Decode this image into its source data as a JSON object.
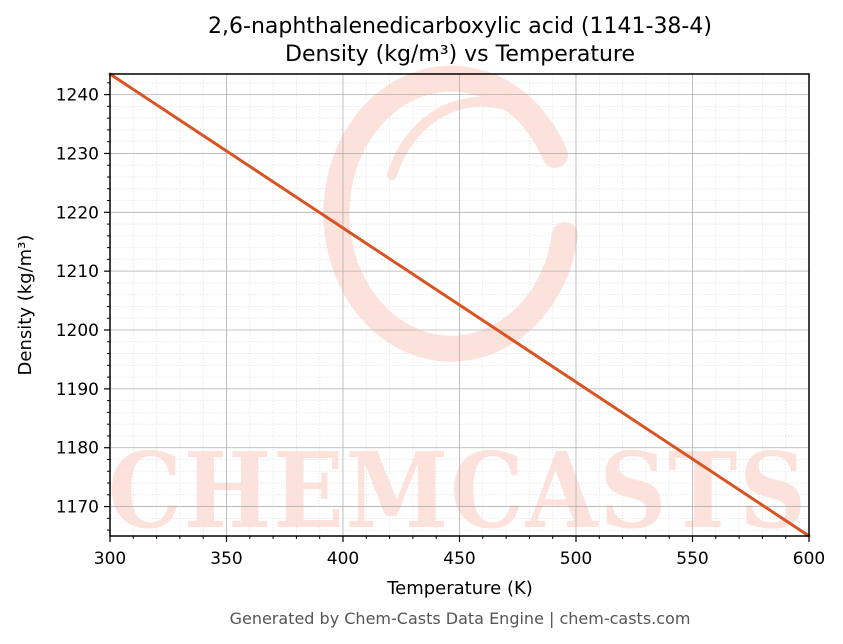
{
  "colors": {
    "line": "#d95423",
    "watermark": "#fde2dc",
    "grid_major": "#b0b0b0",
    "grid_minor": "#e4e4e4",
    "footer": "#555555"
  },
  "watermark": {
    "text": "CHEMCASTS",
    "icon": "chemcasts-logo-c"
  },
  "footer": "Generated by Chem-Casts Data Engine | chem-casts.com",
  "chart_data": {
    "type": "line",
    "title": "2,6-naphthalenedicarboxylic acid (1141-38-4)",
    "subtitle": "Density (kg/m³) vs Temperature",
    "xlabel": "Temperature (K)",
    "ylabel": "Density (kg/m³)",
    "xlim": [
      300,
      600
    ],
    "ylim": [
      1165,
      1243.5
    ],
    "x_ticks": [
      300,
      350,
      400,
      450,
      500,
      550,
      600
    ],
    "y_ticks": [
      1170,
      1180,
      1190,
      1200,
      1210,
      1220,
      1230,
      1240
    ],
    "grid": true,
    "minor_grid": true,
    "legend": "none",
    "series": [
      {
        "x": [
          300,
          600
        ],
        "y": [
          1243.5,
          1165
        ]
      }
    ]
  }
}
